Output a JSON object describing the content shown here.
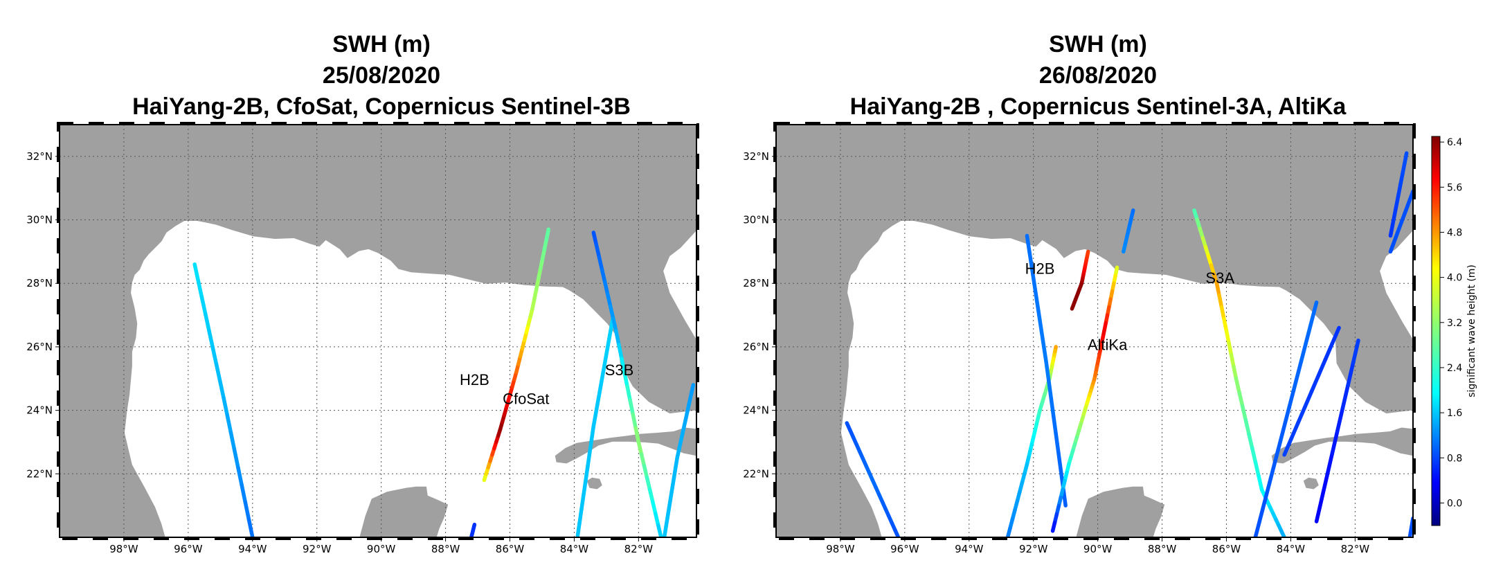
{
  "panels": [
    {
      "title_lines": [
        "SWH (m)",
        "25/08/2020",
        "HaiYang-2B, CfoSat, Copernicus Sentinel-3B"
      ],
      "annotations": [
        "H2B",
        "CfoSat",
        "S3B"
      ]
    },
    {
      "title_lines": [
        "SWH (m)",
        "26/08/2020",
        "HaiYang-2B , Copernicus Sentinel-3A, AltiKa"
      ],
      "annotations": [
        "H2B",
        "S3A",
        "AltiKa"
      ]
    }
  ],
  "map": {
    "lon_range": [
      -100,
      -80.2
    ],
    "lat_range": [
      20,
      33
    ],
    "lon_ticks": [
      "98°W",
      "96°W",
      "94°W",
      "92°W",
      "90°W",
      "88°W",
      "86°W",
      "84°W",
      "82°W"
    ],
    "lat_ticks": [
      "22°N",
      "24°N",
      "26°N",
      "28°N",
      "30°N",
      "32°N"
    ],
    "grid": "dotted",
    "land_color": "#a0a0a0",
    "sea_color": "#ffffff"
  },
  "colorbar": {
    "label": "significant wave height (m)",
    "ticks": [
      "0.0",
      "0.8",
      "1.6",
      "2.4",
      "3.2",
      "4.0",
      "4.8",
      "5.6",
      "6.4"
    ],
    "range": [
      -0.4,
      6.5
    ],
    "colormap": "jet"
  },
  "chart_data": [
    {
      "type": "scatter",
      "title": "SWH (m) 25/08/2020 HaiYang-2B, CfoSat, Copernicus Sentinel-3B",
      "series": [
        {
          "name": "H2B",
          "tracks": [
            {
              "lon": [
                -86.8,
                -86.3,
                -85.8,
                -85.3,
                -84.8
              ],
              "lat": [
                21.8,
                23.4,
                25.2,
                27.2,
                29.7
              ],
              "swh": [
                3.6,
                6.4,
                5.0,
                3.4,
                2.8
              ]
            }
          ]
        },
        {
          "name": "CfoSat",
          "tracks": [
            {
              "lon": [
                -95.8,
                -94.9,
                -94.0
              ],
              "lat": [
                28.6,
                24.4,
                20.0
              ],
              "swh": [
                2.0,
                1.7,
                1.2
              ]
            },
            {
              "lon": [
                -82.8,
                -83.4,
                -83.9
              ],
              "lat": [
                26.9,
                23.5,
                20.0
              ],
              "swh": [
                1.9,
                1.8,
                1.8
              ]
            },
            {
              "lon": [
                -80.3,
                -80.8,
                -81.2
              ],
              "lat": [
                24.8,
                22.5,
                20.0
              ],
              "swh": [
                1.5,
                1.7,
                1.8
              ]
            },
            {
              "lon": [
                -87.1,
                -87.2
              ],
              "lat": [
                20.4,
                20.0
              ],
              "swh": [
                0.8,
                0.8
              ]
            }
          ]
        },
        {
          "name": "S3B",
          "tracks": [
            {
              "lon": [
                -83.4,
                -82.7,
                -82.0,
                -81.3
              ],
              "lat": [
                29.6,
                26.5,
                23.0,
                20.0
              ],
              "swh": [
                1.0,
                1.6,
                3.2,
                1.8
              ]
            }
          ]
        }
      ]
    },
    {
      "type": "scatter",
      "title": "SWH (m) 26/08/2020 HaiYang-2B , Copernicus Sentinel-3A, AltiKa",
      "series": [
        {
          "name": "H2B",
          "tracks": [
            {
              "lon": [
                -90.8,
                -90.5,
                -90.4,
                -90.3
              ],
              "lat": [
                27.2,
                28.0,
                28.5,
                29.0
              ],
              "swh": [
                6.4,
                6.4,
                5.6,
                5.2
              ]
            },
            {
              "lon": [
                -91.3,
                -91.5,
                -91.8,
                -92.2,
                -92.8
              ],
              "lat": [
                26.0,
                25.0,
                24.0,
                22.3,
                20.0
              ],
              "swh": [
                4.6,
                3.2,
                2.6,
                1.8,
                1.3
              ]
            },
            {
              "lon": [
                -92.2,
                -91.6,
                -91.0
              ],
              "lat": [
                29.5,
                25.5,
                21.0
              ],
              "swh": [
                1.2,
                1.3,
                1.1
              ]
            }
          ]
        },
        {
          "name": "AltiKa",
          "tracks": [
            {
              "lon": [
                -89.4,
                -89.8,
                -90.1,
                -90.4,
                -90.9,
                -91.4
              ],
              "lat": [
                28.5,
                26.5,
                25.0,
                24.0,
                22.3,
                20.2
              ],
              "swh": [
                3.6,
                5.8,
                4.8,
                3.6,
                2.4,
                0.5
              ]
            },
            {
              "lon": [
                -88.9,
                -89.2
              ],
              "lat": [
                30.3,
                29.0
              ],
              "swh": [
                1.2,
                1.4
              ]
            }
          ]
        },
        {
          "name": "S3A",
          "tracks": [
            {
              "lon": [
                -87.0,
                -86.3,
                -85.7,
                -84.9,
                -84.2
              ],
              "lat": [
                30.3,
                28.0,
                25.0,
                21.5,
                20.0
              ],
              "swh": [
                2.6,
                4.6,
                3.2,
                2.2,
                1.6
              ]
            }
          ]
        },
        {
          "name": "",
          "tracks": [
            {
              "lon": [
                -97.8,
                -97.0,
                -96.2
              ],
              "lat": [
                23.6,
                21.8,
                20.0
              ],
              "swh": [
                1.0,
                1.2,
                1.0
              ]
            },
            {
              "lon": [
                -85.1,
                -83.2
              ],
              "lat": [
                20.0,
                27.4
              ],
              "swh": [
                1.0,
                1.2
              ]
            },
            {
              "lon": [
                -84.2,
                -82.5
              ],
              "lat": [
                22.6,
                26.6
              ],
              "swh": [
                0.9,
                0.8
              ]
            },
            {
              "lon": [
                -83.2,
                -81.9
              ],
              "lat": [
                20.5,
                26.2
              ],
              "swh": [
                0.4,
                0.9
              ]
            },
            {
              "lon": [
                -80.9,
                -80.4
              ],
              "lat": [
                29.5,
                32.1
              ],
              "swh": [
                0.8,
                1.0
              ]
            },
            {
              "lon": [
                -80.9,
                -80.2
              ],
              "lat": [
                29.0,
                30.9
              ],
              "swh": [
                1.0,
                1.0
              ]
            },
            {
              "lon": [
                -80.3,
                -80.2
              ],
              "lat": [
                20.0,
                20.6
              ],
              "swh": [
                1.0,
                1.0
              ]
            }
          ]
        }
      ]
    }
  ]
}
